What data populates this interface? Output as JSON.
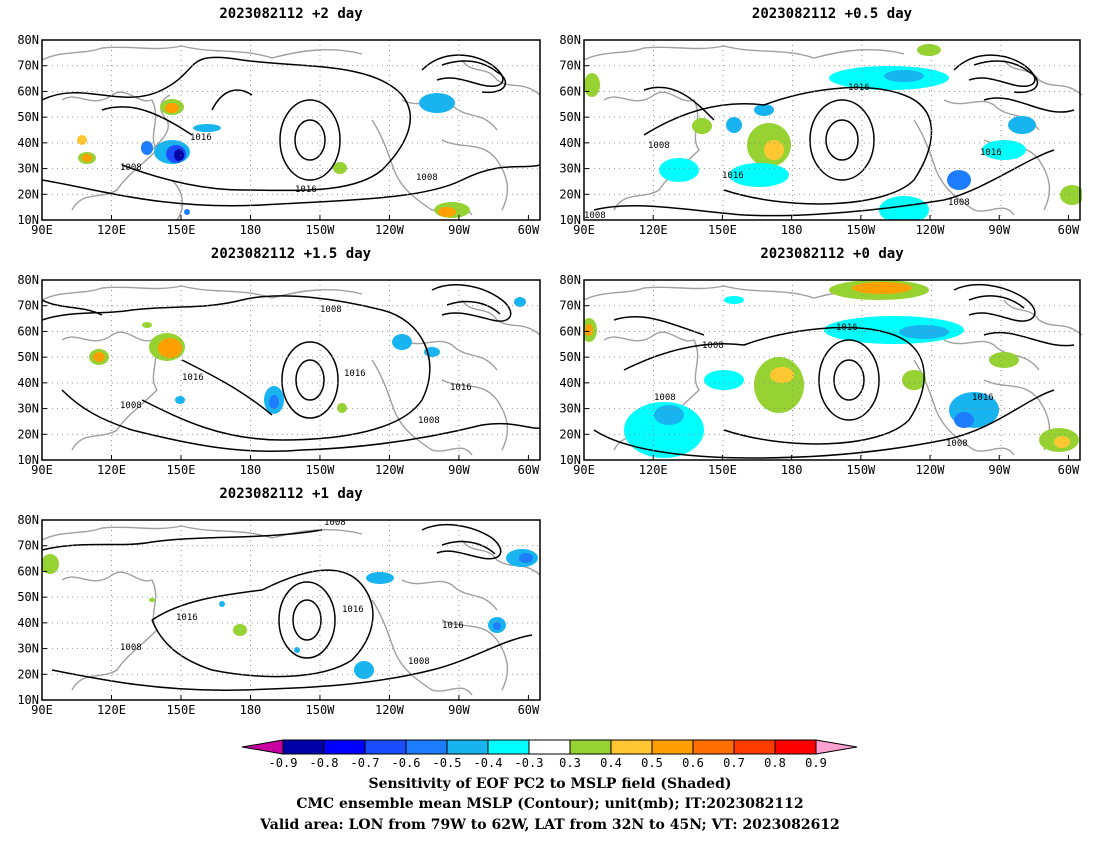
{
  "panels": [
    {
      "id": "p2d",
      "title": "2023082112 +2 day",
      "contour_labels": [
        "1016",
        "1008",
        "1016",
        "1008"
      ]
    },
    {
      "id": "p05d",
      "title": "2023082112 +0.5 day",
      "contour_labels": [
        "1016",
        "1008",
        "1016",
        "1016",
        "1008",
        "1008"
      ]
    },
    {
      "id": "p15d",
      "title": "2023082112 +1.5 day",
      "contour_labels": [
        "1008",
        "1016",
        "1016",
        "1016",
        "1008",
        "1008"
      ]
    },
    {
      "id": "p0d",
      "title": "2023082112 +0 day",
      "contour_labels": [
        "1016",
        "1008",
        "1008",
        "1016",
        "1008"
      ]
    },
    {
      "id": "p1d",
      "title": "2023082112 +1 day",
      "contour_labels": [
        "1008",
        "1016",
        "1016",
        "1016",
        "1008",
        "1008"
      ]
    }
  ],
  "axes": {
    "lat_labels": [
      "80N",
      "70N",
      "60N",
      "50N",
      "40N",
      "30N",
      "20N",
      "10N"
    ],
    "lon_labels": [
      "90E",
      "120E",
      "150E",
      "180",
      "150W",
      "120W",
      "90W",
      "60W"
    ],
    "lat_range": [
      10,
      80
    ],
    "lon_range_deg_east": [
      90,
      305
    ]
  },
  "colorbar": {
    "labels": [
      "-0.9",
      "-0.8",
      "-0.7",
      "-0.6",
      "-0.5",
      "-0.4",
      "-0.3",
      "0.3",
      "0.4",
      "0.5",
      "0.6",
      "0.7",
      "0.8",
      "0.9"
    ],
    "colors": [
      "#0000a8",
      "#0000ff",
      "#1c4cff",
      "#1e7cff",
      "#18b4f0",
      "#00ffff",
      "#ffffff",
      "#96d232",
      "#ffc832",
      "#ffa000",
      "#ff6e00",
      "#ff3c00",
      "#ff0000"
    ],
    "low_extend_color": "#c800a0",
    "high_extend_color": "#ffa0d2"
  },
  "colors": {
    "coast": "#a0a0a0",
    "contour": "#000000",
    "grid": "#8c8c8c"
  },
  "footer": {
    "line1": "Sensitivity of EOF PC2 to MSLP field (Shaded)",
    "line2": "CMC ensemble mean MSLP (Contour); unit(mb); IT:2023082112",
    "line3": "Valid area: LON from 79W to 62W, LAT from 32N to 45N; VT: 2023082612"
  }
}
